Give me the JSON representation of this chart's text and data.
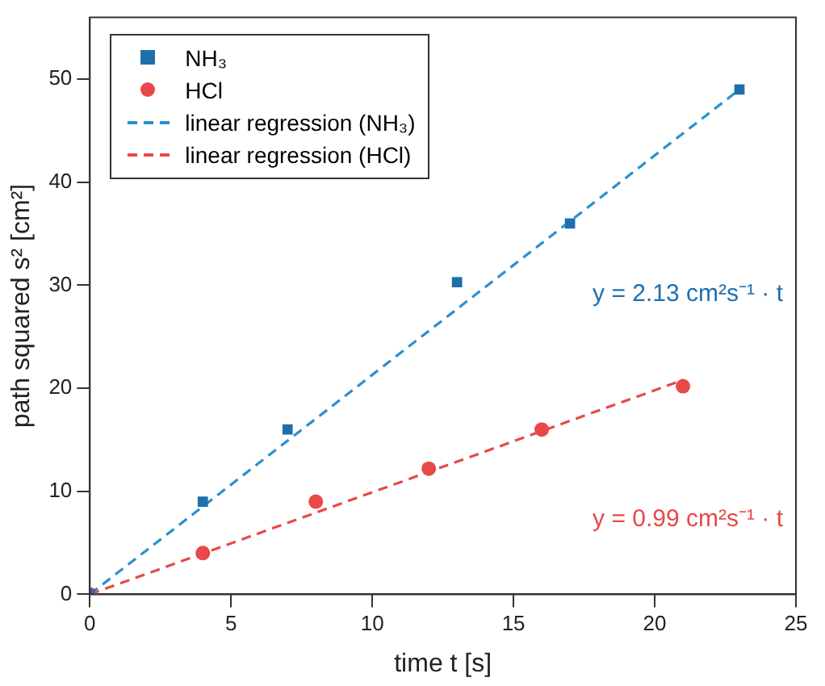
{
  "chart_data": {
    "type": "scatter",
    "xlabel": "time t [s]",
    "ylabel": "path squared s² [cm²]",
    "xlim": [
      0,
      25
    ],
    "xticks": [
      0,
      5,
      10,
      15,
      20,
      25
    ],
    "ylim": [
      0,
      56
    ],
    "yticks": [
      0,
      10,
      20,
      30,
      40,
      50
    ],
    "grid": false,
    "legend": "top left",
    "series": [
      {
        "name": "NH₃",
        "color": "#1f6fad",
        "marker": "square",
        "x": [
          0,
          4,
          7,
          13,
          17,
          23
        ],
        "values": [
          0,
          9,
          16,
          30.3,
          36,
          49
        ]
      },
      {
        "name": "HCl",
        "color": "#e84848",
        "marker": "circle",
        "x": [
          0,
          4,
          8,
          12,
          16,
          21
        ],
        "values": [
          0,
          4,
          9,
          12.2,
          16,
          20.2
        ]
      },
      {
        "name": "linear regression (NH₃)",
        "type": "line",
        "color": "#2a8fd0",
        "line_style": "dashed",
        "marker": "none",
        "x": [
          0,
          23
        ],
        "values": [
          0,
          49
        ]
      },
      {
        "name": "linear regression (HCl)",
        "type": "line",
        "color": "#e84848",
        "line_style": "dashed",
        "marker": "none",
        "x": [
          0,
          21
        ],
        "values": [
          0,
          20.8
        ]
      }
    ],
    "annotations": [
      "y = 2.13 cm²s⁻¹ · t",
      "y = 0.99 cm²s⁻¹ · t"
    ]
  }
}
